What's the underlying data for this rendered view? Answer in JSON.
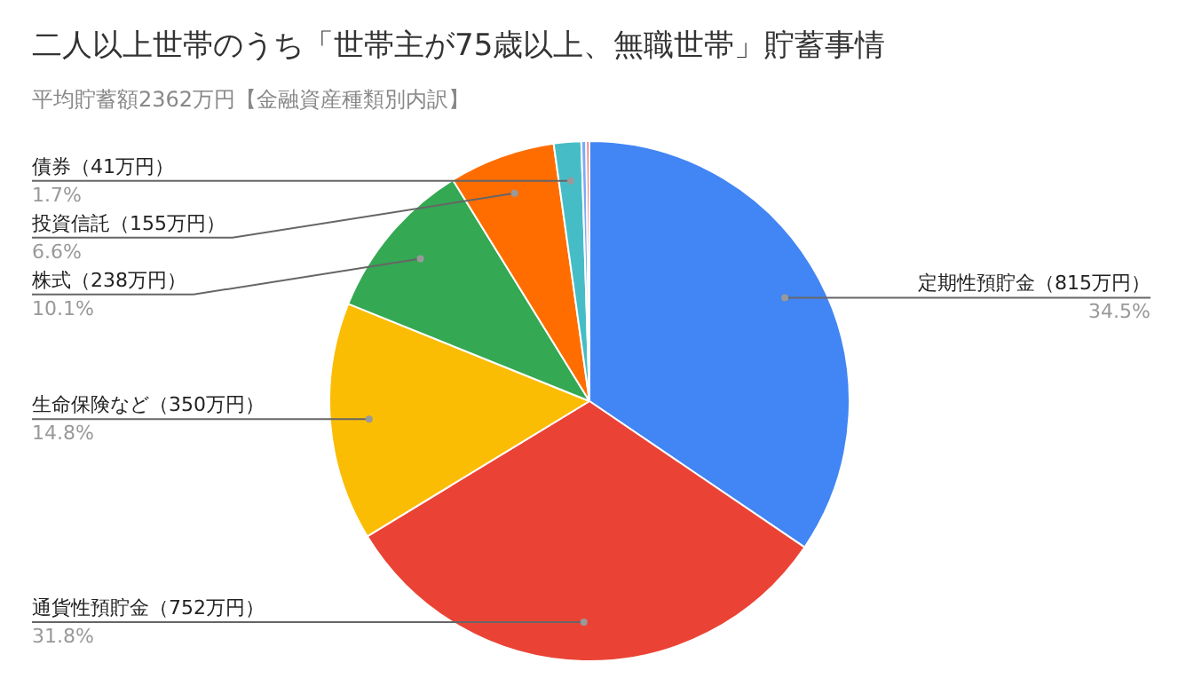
{
  "chart_data": {
    "type": "pie",
    "title": "二人以上世帯のうち「世帯主が75歳以上、無職世帯」貯蓄事情",
    "subtitle": "平均貯蓄額2362万円【金融資産種類別内訳】",
    "categories": [
      "定期性預貯金（815万円）",
      "通貨性預貯金（752万円）",
      "生命保険など（350万円）",
      "株式（238万円）",
      "投資信託（155万円）",
      "債券（41万円）",
      null,
      null
    ],
    "values": [
      34.5,
      31.8,
      14.8,
      10.1,
      6.6,
      1.7,
      0.3,
      0.2
    ],
    "colors": [
      "#4285f4",
      "#ea4335",
      "#fbbc04",
      "#34a853",
      "#ff6d01",
      "#46bdc6",
      "#7baaf7",
      "#f07b72"
    ],
    "value_labels": [
      "34.5%",
      "31.8%",
      "14.8%",
      "10.1%",
      "6.6%",
      "1.7%",
      null,
      null
    ],
    "legend": false
  }
}
